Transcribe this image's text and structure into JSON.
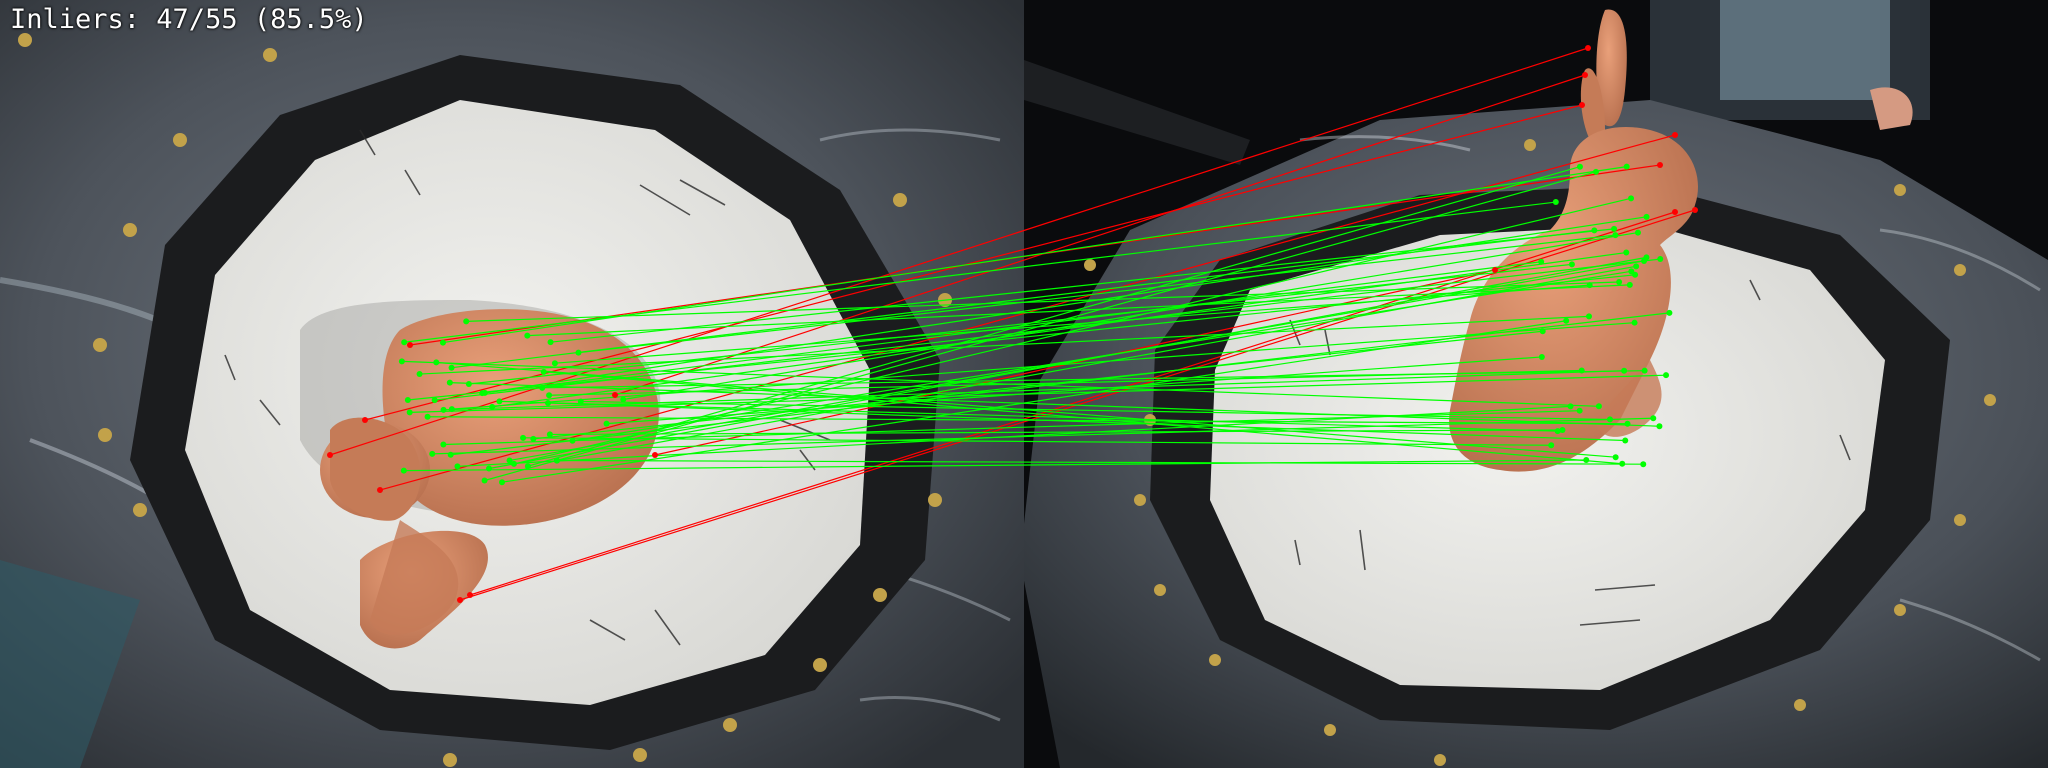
{
  "overlay": {
    "inlier_label": "Inliers: 47/55 (85.5%)"
  },
  "match_stats": {
    "inliers": 47,
    "total": 55,
    "ratio_percent": 85.5
  },
  "colors": {
    "inlier": "#00ff00",
    "outlier": "#ff0000",
    "caption_text": "#ffffff",
    "bunny": "#d98a66",
    "board": "#e9e9e6",
    "ring": "#1c1d1f",
    "plate": "#59606a"
  },
  "images": [
    {
      "name": "left-view",
      "subject": "bunny-figurine-top-view"
    },
    {
      "name": "right-view",
      "subject": "bunny-figurine-side-view"
    }
  ]
}
